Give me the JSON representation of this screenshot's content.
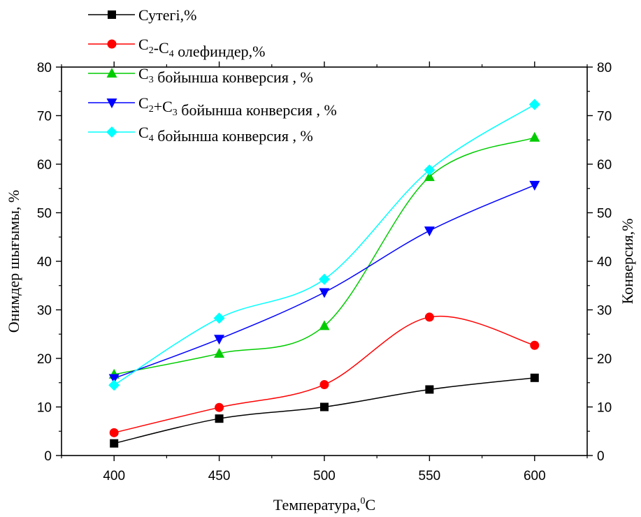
{
  "chart_data": {
    "type": "line",
    "x": [
      400,
      450,
      500,
      550,
      600
    ],
    "xlabel": "Температура,",
    "xlabel_sup": "0",
    "xlabel_unit": "C",
    "ylabel_left": "Онимдер шығымы, %",
    "ylabel_right": "Конверсия,%",
    "xlim": [
      375,
      625
    ],
    "ylim": [
      0,
      80
    ],
    "x_ticks": [
      400,
      450,
      500,
      550,
      600
    ],
    "y_ticks": [
      0,
      10,
      20,
      30,
      40,
      50,
      60,
      70,
      80
    ],
    "grid": false,
    "legend_position": "top-left",
    "series": [
      {
        "legend": [
          {
            "t": "Сутегі,%"
          }
        ],
        "values": [
          2.5,
          7.6,
          10.0,
          13.6,
          16.0
        ],
        "color": "#000000",
        "marker": "square"
      },
      {
        "legend": [
          {
            "t": "C"
          },
          {
            "t": "2",
            "sub": true
          },
          {
            "t": "-C"
          },
          {
            "t": "4",
            "sub": true
          },
          {
            "t": " олефиндер,%"
          }
        ],
        "values": [
          4.7,
          9.9,
          14.6,
          28.5,
          22.7
        ],
        "color": "#ff0000",
        "marker": "circle"
      },
      {
        "legend": [
          {
            "t": "C"
          },
          {
            "t": "3",
            "sub": true
          },
          {
            "t": " бойынша конверсия , %"
          }
        ],
        "values": [
          16.7,
          21.0,
          26.7,
          57.4,
          65.5
        ],
        "color": "#00cc00",
        "marker": "triangle-up"
      },
      {
        "legend": [
          {
            "t": "C"
          },
          {
            "t": "2",
            "sub": true
          },
          {
            "t": "+C"
          },
          {
            "t": "3",
            "sub": true
          },
          {
            "t": " бойынша конверсия , %"
          }
        ],
        "values": [
          15.9,
          24.0,
          33.6,
          46.3,
          55.7
        ],
        "color": "#0000ff",
        "marker": "triangle-down"
      },
      {
        "legend": [
          {
            "t": "C"
          },
          {
            "t": "4",
            "sub": true
          },
          {
            "t": " бойынша конверсия , %"
          }
        ],
        "values": [
          14.5,
          28.3,
          36.3,
          58.8,
          72.3
        ],
        "color": "#00ffff",
        "marker": "diamond"
      }
    ]
  }
}
